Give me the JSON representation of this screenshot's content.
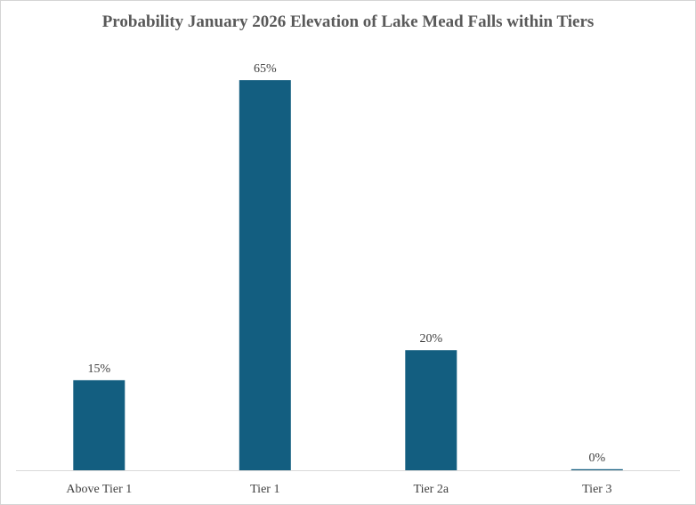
{
  "chart_data": {
    "type": "bar",
    "title": "Probability January 2026 Elevation of Lake Mead Falls within Tiers",
    "categories": [
      "Above Tier 1",
      "Tier 1",
      "Tier 2a",
      "Tier 3"
    ],
    "values": [
      15,
      65,
      20,
      0
    ],
    "data_labels": [
      "15%",
      "65%",
      "20%",
      "0%"
    ],
    "xlabel": "",
    "ylabel": "",
    "ylim": [
      0,
      65
    ],
    "grid": false,
    "legend": "none",
    "bar_color": "#135e80"
  }
}
